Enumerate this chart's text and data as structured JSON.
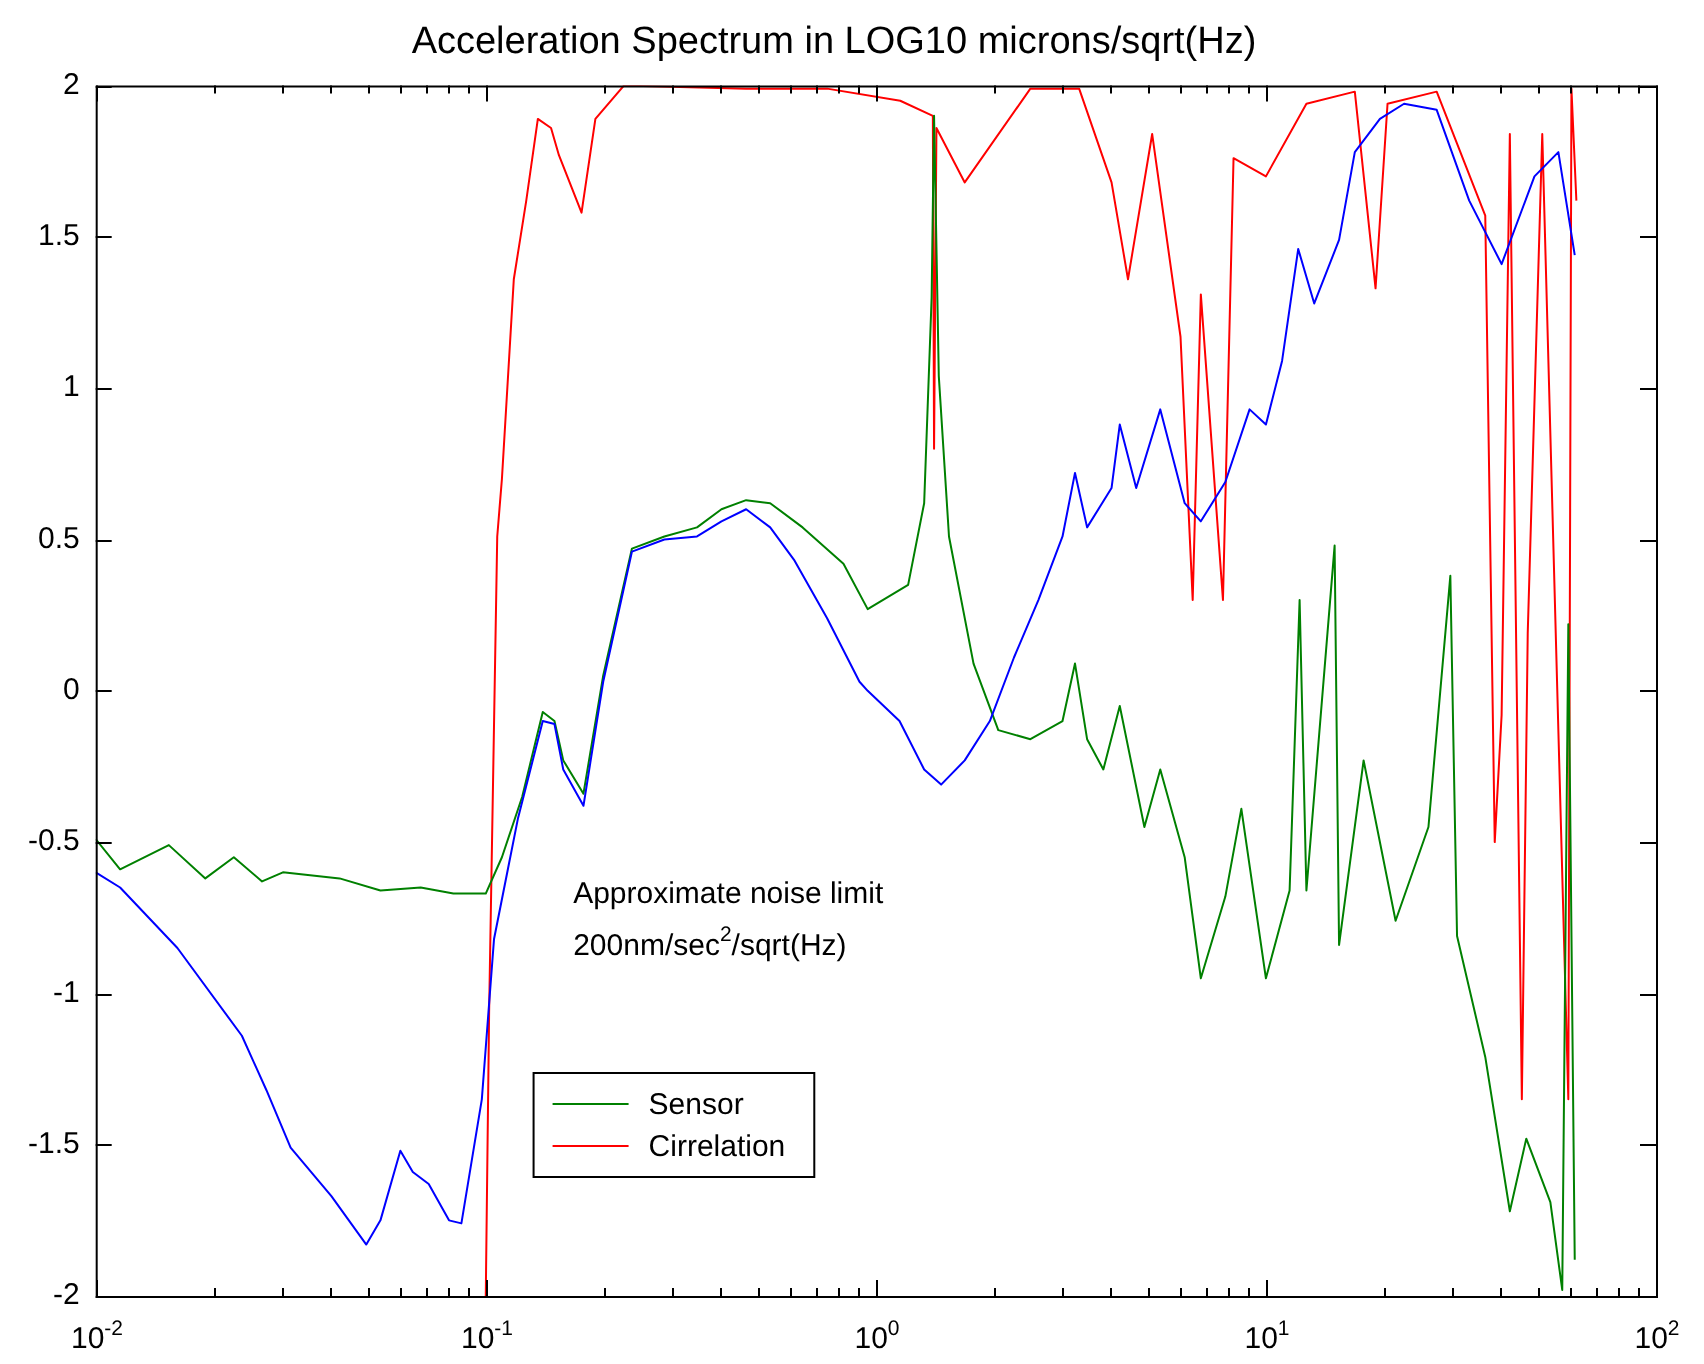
{
  "chart_data": {
    "type": "line",
    "title": "Acceleration Spectrum in LOG10 microns/sqrt(Hz)",
    "annotations": [
      "Approximate noise limit",
      "200nm/sec$^{2}$/sqrt(Hz)"
    ],
    "log": "x",
    "grid": false,
    "legend": "bottom left",
    "marker": "none",
    "line_style": "solid",
    "xlim": [
      0.01,
      100
    ],
    "ylim": [
      -2,
      2
    ],
    "xticks": [
      {
        "value": 0.01,
        "label": "10$^{-2}$"
      },
      {
        "value": 0.02,
        "label": null
      },
      {
        "value": 0.03,
        "label": null
      },
      {
        "value": 0.04,
        "label": null
      },
      {
        "value": 0.05,
        "label": null
      },
      {
        "value": 0.06,
        "label": null
      },
      {
        "value": 0.07,
        "label": null
      },
      {
        "value": 0.08,
        "label": null
      },
      {
        "value": 0.09,
        "label": null
      },
      {
        "value": 0.1,
        "label": "10$^{-1}$"
      },
      {
        "value": 0.2,
        "label": null
      },
      {
        "value": 0.3,
        "label": null
      },
      {
        "value": 0.4,
        "label": null
      },
      {
        "value": 0.5,
        "label": null
      },
      {
        "value": 0.6,
        "label": null
      },
      {
        "value": 0.7,
        "label": null
      },
      {
        "value": 0.8,
        "label": null
      },
      {
        "value": 0.9,
        "label": null
      },
      {
        "value": 1,
        "label": "10$^{0}$"
      },
      {
        "value": 2,
        "label": null
      },
      {
        "value": 3,
        "label": null
      },
      {
        "value": 4,
        "label": null
      },
      {
        "value": 5,
        "label": null
      },
      {
        "value": 6,
        "label": null
      },
      {
        "value": 7,
        "label": null
      },
      {
        "value": 8,
        "label": null
      },
      {
        "value": 9,
        "label": null
      },
      {
        "value": 10,
        "label": "10$^{1}$"
      },
      {
        "value": 20,
        "label": null
      },
      {
        "value": 30,
        "label": null
      },
      {
        "value": 40,
        "label": null
      },
      {
        "value": 50,
        "label": null
      },
      {
        "value": 60,
        "label": null
      },
      {
        "value": 70,
        "label": null
      },
      {
        "value": 80,
        "label": null
      },
      {
        "value": 90,
        "label": null
      },
      {
        "value": 100,
        "label": "10$^{2}$"
      }
    ],
    "yticks": [
      -2,
      -1.5,
      -1,
      -0.5,
      0,
      0.5,
      1,
      1.5,
      2
    ],
    "series": [
      {
        "color": "#0000ff",
        "x": [
          0.01,
          0.01155,
          0.0162,
          0.0237,
          0.0274,
          0.0316,
          0.0402,
          0.0494,
          0.0537,
          0.0604,
          0.065,
          0.0714,
          0.0805,
          0.0866,
          0.0977,
          0.105,
          0.121,
          0.14,
          0.15,
          0.158,
          0.178,
          0.2,
          0.237,
          0.287,
          0.348,
          0.402,
          0.465,
          0.536,
          0.619,
          0.75,
          0.908,
          0.953,
          1.15,
          1.33,
          1.47,
          1.69,
          1.96,
          2.26,
          2.61,
          3.01,
          3.24,
          3.48,
          4.02,
          4.22,
          4.65,
          5.36,
          6.19,
          6.81,
          7.87,
          9.08,
          10,
          11,
          12.1,
          13.3,
          15.4,
          16.9,
          19.6,
          22.6,
          27.4,
          33.2,
          40.2,
          48.8,
          56.2,
          61.9
        ],
        "values": [
          -0.6,
          -0.65,
          -0.85,
          -1.14,
          -1.32,
          -1.51,
          -1.67,
          -1.83,
          -1.75,
          -1.52,
          -1.59,
          -1.63,
          -1.75,
          -1.76,
          -1.35,
          -0.82,
          -0.42,
          -0.1,
          -0.11,
          -0.26,
          -0.38,
          0.03,
          0.46,
          0.5,
          0.51,
          0.56,
          0.6,
          0.54,
          0.43,
          0.24,
          0.03,
          0,
          -0.1,
          -0.26,
          -0.31,
          -0.23,
          -0.1,
          0.11,
          0.3,
          0.51,
          0.72,
          0.54,
          0.67,
          0.88,
          0.67,
          0.93,
          0.62,
          0.56,
          0.69,
          0.93,
          0.88,
          1.09,
          1.46,
          1.28,
          1.49,
          1.78,
          1.89,
          1.94,
          1.92,
          1.62,
          1.41,
          1.7,
          1.78,
          1.44
        ]
      },
      {
        "name": "Sensor",
        "color": "#008000",
        "x": [
          0.01,
          0.01155,
          0.0154,
          0.0191,
          0.0226,
          0.0267,
          0.0302,
          0.0422,
          0.0537,
          0.0681,
          0.0826,
          0.1,
          0.11,
          0.124,
          0.14,
          0.15,
          0.158,
          0.178,
          0.2,
          0.237,
          0.287,
          0.348,
          0.402,
          0.465,
          0.536,
          0.649,
          0.826,
          0.953,
          1.21,
          1.33,
          1.39,
          1.41,
          1.45,
          1.54,
          1.78,
          2.06,
          2.49,
          3.01,
          3.24,
          3.48,
          3.83,
          4.22,
          4.88,
          5.36,
          6.19,
          6.81,
          7.87,
          8.65,
          10,
          11.5,
          12.2,
          12.7,
          15,
          15.4,
          17.8,
          21.5,
          26.1,
          29.7,
          30.9,
          36.5,
          42.2,
          46.5,
          53.6,
          57.5,
          59.6,
          61.9
        ],
        "values": [
          -0.49,
          -0.59,
          -0.51,
          -0.62,
          -0.55,
          -0.63,
          -0.6,
          -0.62,
          -0.66,
          -0.65,
          -0.67,
          -0.67,
          -0.55,
          -0.35,
          -0.07,
          -0.1,
          -0.23,
          -0.34,
          0.05,
          0.47,
          0.51,
          0.54,
          0.6,
          0.63,
          0.62,
          0.54,
          0.42,
          0.27,
          0.35,
          0.62,
          1.3,
          1.9,
          1.04,
          0.51,
          0.09,
          -0.13,
          -0.16,
          -0.1,
          0.09,
          -0.16,
          -0.26,
          -0.05,
          -0.45,
          -0.26,
          -0.55,
          -0.95,
          -0.68,
          -0.39,
          -0.95,
          -0.66,
          0.3,
          -0.66,
          0.48,
          -0.84,
          -0.23,
          -0.76,
          -0.45,
          0.38,
          -0.81,
          -1.21,
          -1.72,
          -1.48,
          -1.69,
          -1.98,
          0.22,
          -1.88
        ]
      },
      {
        "name": "Cirrelation",
        "color": "#ff0000",
        "x": [
          0.1,
          0.102,
          0.107,
          0.11,
          0.118,
          0.127,
          0.136,
          0.147,
          0.154,
          0.176,
          0.191,
          0.226,
          0.465,
          0.75,
          1.155,
          1.4,
          1.41,
          1.43,
          1.69,
          2.49,
          3.32,
          4.02,
          4.43,
          5.11,
          6.04,
          6.49,
          6.81,
          7.76,
          8.26,
          10,
          12.7,
          16.9,
          19.1,
          20.5,
          27.4,
          36.5,
          38.6,
          40.2,
          42.2,
          45.3,
          46.9,
          51.1,
          59.6,
          60.7,
          62.5
        ],
        "values": [
          -2,
          -1.06,
          0.51,
          0.7,
          1.36,
          1.62,
          1.89,
          1.86,
          1.77,
          1.58,
          1.89,
          2,
          1.99,
          1.99,
          1.95,
          1.9,
          0.8,
          1.86,
          1.68,
          1.99,
          1.99,
          1.68,
          1.36,
          1.84,
          1.17,
          0.3,
          1.31,
          0.3,
          1.76,
          1.7,
          1.94,
          1.98,
          1.33,
          1.94,
          1.98,
          1.57,
          -0.5,
          -0.08,
          1.84,
          -1.35,
          0.19,
          1.84,
          -1.35,
          1.99,
          1.62
        ]
      }
    ]
  }
}
